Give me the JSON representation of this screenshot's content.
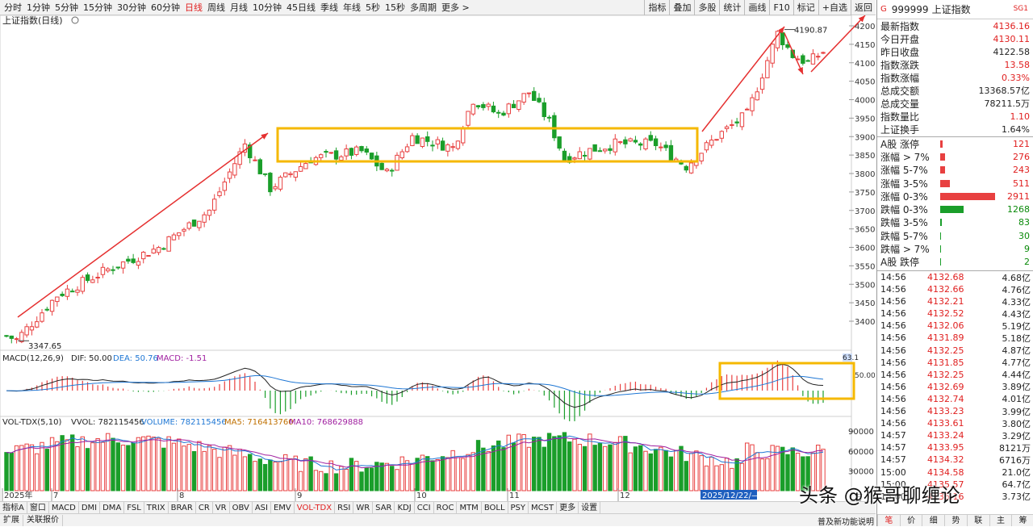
{
  "toolbar": {
    "periods": [
      "分时",
      "1分钟",
      "5分钟",
      "15分钟",
      "30分钟",
      "60分钟",
      "日线",
      "周线",
      "月线",
      "10分钟",
      "45日线",
      "季线",
      "年线",
      "5秒",
      "15秒",
      "多周期",
      "更多 >"
    ],
    "active_period": "日线",
    "tools": [
      "指标",
      "叠加",
      "多股",
      "统计",
      "画线",
      "F10",
      "标记",
      "+自选",
      "返回"
    ]
  },
  "chart": {
    "title": "上证指数(日线)",
    "y_labels": [
      "4200",
      "4150",
      "4100",
      "4050",
      "4000",
      "3950",
      "3900",
      "3850",
      "3800",
      "3750",
      "3700",
      "3650",
      "3600",
      "3550",
      "3500",
      "3450",
      "3400"
    ],
    "high_label": "4190.87",
    "low_label": "3347.65",
    "x_labels": [
      "2025年",
      "7",
      "8",
      "9",
      "10",
      "11",
      "12",
      "2025/12/22/—"
    ]
  },
  "macd": {
    "name": "MACD(12,26,9)",
    "dif": "DIF: 50.00",
    "dea": "DEA: 50.76",
    "macd": "MACD: -1.51",
    "scale_top": "63.1",
    "scale_mid": "50.00"
  },
  "vol": {
    "name": "VOL-TDX(5,10)",
    "vvol": "VVOL: 782115456",
    "volume": "VOLUME: 782115456",
    "ma5": "MA5: 716413760",
    "ma10": "MA10: 768629888",
    "y_labels": [
      "90000",
      "60000",
      "30000"
    ],
    "unit": "万"
  },
  "colors": {
    "up": "#e84040",
    "down": "#1a9e2a",
    "highlight": "#f5b800",
    "dif": "#222222",
    "dea": "#1f77d4",
    "ma10": "#a020a0"
  },
  "quote": {
    "flag": "G",
    "code": "999999",
    "name": "上证指数",
    "sub": "SG1",
    "rows": [
      {
        "label": "最新指数",
        "value": "4136.16",
        "k": false
      },
      {
        "label": "今日开盘",
        "value": "4130.11",
        "k": false
      },
      {
        "label": "昨日收盘",
        "value": "4122.58",
        "k": true
      },
      {
        "label": "指数涨跌",
        "value": "13.58",
        "k": false
      },
      {
        "label": "指数涨幅",
        "value": "0.33%",
        "k": false
      },
      {
        "label": "总成交额",
        "value": "13368.57亿",
        "k": true
      },
      {
        "label": "总成交量",
        "value": "78211.5万",
        "k": true
      },
      {
        "label": "指数量比",
        "value": "1.10",
        "k": false
      },
      {
        "label": "上证换手",
        "value": "1.64%",
        "k": true
      }
    ]
  },
  "stats": [
    {
      "label": "A股 涨停",
      "count": "121",
      "dir": "up",
      "frac": 0.04
    },
    {
      "label": "涨幅 > 7%",
      "count": "276",
      "dir": "up",
      "frac": 0.09
    },
    {
      "label": "涨幅 5-7%",
      "count": "243",
      "dir": "up",
      "frac": 0.08
    },
    {
      "label": "涨幅 3-5%",
      "count": "511",
      "dir": "up",
      "frac": 0.17
    },
    {
      "label": "涨幅 0-3%",
      "count": "2911",
      "dir": "up",
      "frac": 0.97
    },
    {
      "label": "跌幅 0-3%",
      "count": "1268",
      "dir": "dn",
      "frac": 0.42
    },
    {
      "label": "跌幅 3-5%",
      "count": "83",
      "dir": "dn",
      "frac": 0.03
    },
    {
      "label": "跌幅 5-7%",
      "count": "30",
      "dir": "dn",
      "frac": 0.01
    },
    {
      "label": "跌幅 > 7%",
      "count": "9",
      "dir": "dn",
      "frac": 0.01
    },
    {
      "label": "A股 跌停",
      "count": "2",
      "dir": "dn",
      "frac": 0.01
    }
  ],
  "ticks": [
    {
      "t": "14:56",
      "p": "4132.68",
      "a": "4.68亿"
    },
    {
      "t": "14:56",
      "p": "4132.66",
      "a": "4.76亿"
    },
    {
      "t": "14:56",
      "p": "4132.21",
      "a": "4.33亿"
    },
    {
      "t": "14:56",
      "p": "4132.52",
      "a": "4.43亿"
    },
    {
      "t": "14:56",
      "p": "4132.06",
      "a": "5.19亿"
    },
    {
      "t": "14:56",
      "p": "4131.89",
      "a": "5.18亿"
    },
    {
      "t": "14:56",
      "p": "4132.25",
      "a": "4.87亿"
    },
    {
      "t": "14:56",
      "p": "4131.85",
      "a": "4.77亿"
    },
    {
      "t": "14:56",
      "p": "4132.25",
      "a": "4.44亿"
    },
    {
      "t": "14:56",
      "p": "4132.69",
      "a": "3.89亿"
    },
    {
      "t": "14:56",
      "p": "4132.74",
      "a": "4.01亿"
    },
    {
      "t": "14:56",
      "p": "4133.23",
      "a": "3.99亿"
    },
    {
      "t": "14:56",
      "p": "4133.61",
      "a": "3.80亿"
    },
    {
      "t": "14:57",
      "p": "4133.24",
      "a": "3.29亿"
    },
    {
      "t": "14:57",
      "p": "4133.95",
      "a": "8121万"
    },
    {
      "t": "14:57",
      "p": "4134.32",
      "a": "6716万"
    },
    {
      "t": "15:00",
      "p": "4134.58",
      "a": "21.0亿"
    },
    {
      "t": "15:00",
      "p": "4135.57",
      "a": "64.7亿"
    },
    {
      "t": "15:00",
      "p": "4136.16",
      "a": "3.73亿"
    }
  ],
  "rp_bottom": [
    "笔",
    "价",
    "细",
    "势",
    "联",
    "主",
    "筹"
  ],
  "indicators": [
    "指标A",
    "窗口",
    "MACD",
    "DMI",
    "DMA",
    "FSL",
    "TRIX",
    "BRAR",
    "CR",
    "VR",
    "OBV",
    "ASI",
    "EMV",
    "VOL-TDX",
    "RSI",
    "WR",
    "SAR",
    "KDJ",
    "CCI",
    "ROC",
    "MTM",
    "BOLL",
    "PSY",
    "MCST",
    "更多",
    "设置"
  ],
  "active_indicator": "VOL-TDX",
  "status": {
    "items": [
      "扩展",
      "关联报价"
    ],
    "right": "普及新功能说明"
  },
  "watermark": "头条 @猴哥聊缠论"
}
